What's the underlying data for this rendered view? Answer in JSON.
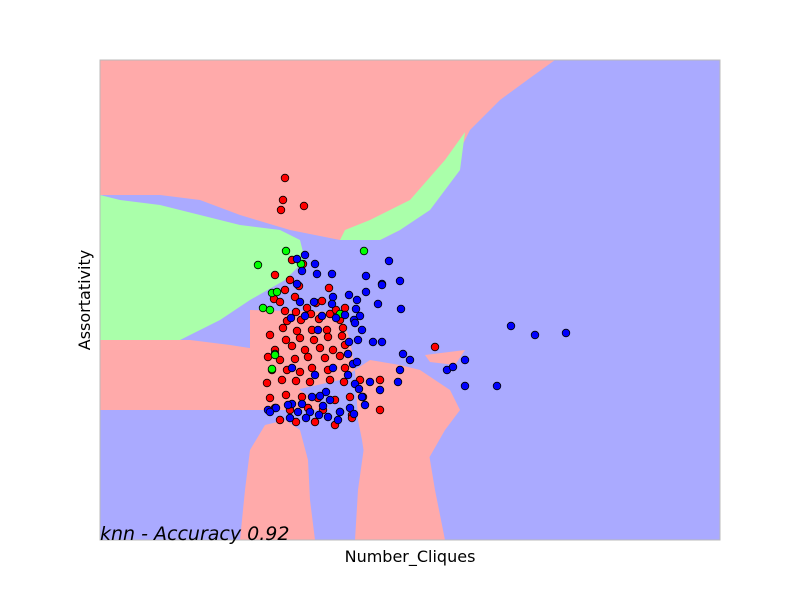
{
  "chart_data": {
    "type": "scatter",
    "title": "",
    "xlabel": "Number_Cliques",
    "ylabel": "Assortativity",
    "annotation": "knn - Accuracy 0.92",
    "xlim": [
      0,
      620
    ],
    "ylim": [
      0,
      480
    ],
    "show_ticks": false,
    "grid": false,
    "legend": "none",
    "colors": {
      "region_red": "#ffaaaa",
      "region_green": "#aaffaa",
      "region_blue": "#aaaaff",
      "point_red": "#ff0000",
      "point_green": "#00ff00",
      "point_blue": "#0000ff",
      "point_edge": "#000000",
      "frame": "#bbbbbb"
    },
    "regions": [
      {
        "class": "red",
        "polygon": [
          [
            0,
            480
          ],
          [
            455,
            480
          ],
          [
            430,
            462
          ],
          [
            400,
            440
          ],
          [
            370,
            410
          ],
          [
            350,
            370
          ],
          [
            300,
            310
          ],
          [
            280,
            300
          ],
          [
            240,
            300
          ],
          [
            190,
            310
          ],
          [
            140,
            325
          ],
          [
            100,
            340
          ],
          [
            60,
            345
          ],
          [
            20,
            345
          ],
          [
            0,
            345
          ]
        ]
      },
      {
        "class": "green",
        "polygon": [
          [
            0,
            345
          ],
          [
            20,
            340
          ],
          [
            60,
            335
          ],
          [
            100,
            325
          ],
          [
            140,
            315
          ],
          [
            180,
            310
          ],
          [
            200,
            300
          ],
          [
            205,
            280
          ],
          [
            185,
            260
          ],
          [
            150,
            240
          ],
          [
            120,
            220
          ],
          [
            80,
            200
          ],
          [
            40,
            190
          ],
          [
            0,
            185
          ]
        ]
      },
      {
        "class": "green",
        "polygon": [
          [
            240,
            300
          ],
          [
            280,
            300
          ],
          [
            300,
            310
          ],
          [
            330,
            330
          ],
          [
            360,
            370
          ],
          [
            365,
            408
          ],
          [
            345,
            380
          ],
          [
            310,
            340
          ],
          [
            270,
            320
          ],
          [
            245,
            310
          ]
        ]
      },
      {
        "class": "red",
        "polygon": [
          [
            0,
            200
          ],
          [
            90,
            200
          ],
          [
            130,
            195
          ],
          [
            175,
            188
          ],
          [
            200,
            150
          ],
          [
            230,
            130
          ],
          [
            0,
            130
          ]
        ]
      },
      {
        "class": "red",
        "polygon": [
          [
            150,
            230
          ],
          [
            240,
            228
          ],
          [
            250,
            200
          ],
          [
            255,
            170
          ],
          [
            258,
            120
          ],
          [
            262,
            100
          ],
          [
            265,
            80
          ],
          [
            275,
            60
          ],
          [
            310,
            55
          ],
          [
            325,
            75
          ],
          [
            345,
            110
          ],
          [
            360,
            130
          ],
          [
            350,
            150
          ],
          [
            320,
            170
          ],
          [
            300,
            175
          ],
          [
            270,
            180
          ],
          [
            240,
            160
          ],
          [
            150,
            140
          ]
        ]
      },
      {
        "class": "blue",
        "polygon": [
          [
            0,
            0
          ],
          [
            130,
            0
          ],
          [
            150,
            30
          ],
          [
            155,
            70
          ],
          [
            160,
            100
          ],
          [
            150,
            120
          ],
          [
            130,
            125
          ],
          [
            60,
            130
          ],
          [
            0,
            128
          ]
        ]
      },
      {
        "class": "red",
        "polygon": [
          [
            140,
            0
          ],
          [
            215,
            0
          ],
          [
            210,
            40
          ],
          [
            208,
            80
          ],
          [
            200,
            110
          ],
          [
            185,
            120
          ],
          [
            165,
            115
          ],
          [
            150,
            90
          ],
          [
            145,
            50
          ]
        ]
      },
      {
        "class": "red",
        "polygon": [
          [
            255,
            0
          ],
          [
            345,
            0
          ],
          [
            335,
            50
          ],
          [
            325,
            110
          ],
          [
            305,
            120
          ],
          [
            280,
            120
          ],
          [
            265,
            100
          ],
          [
            258,
            50
          ]
        ]
      },
      {
        "class": "red",
        "polygon": [
          [
            325,
            185
          ],
          [
            365,
            190
          ],
          [
            355,
            175
          ],
          [
            330,
            178
          ]
        ]
      }
    ],
    "series": [
      {
        "class": "red",
        "points": [
          [
            185,
            362
          ],
          [
            183,
            340
          ],
          [
            204,
            334
          ],
          [
            181,
            330
          ],
          [
            192,
            280
          ],
          [
            203,
            276
          ],
          [
            175,
            265
          ],
          [
            190,
            260
          ],
          [
            185,
            250
          ],
          [
            199,
            254
          ],
          [
            174,
            241
          ],
          [
            180,
            238
          ],
          [
            195,
            243
          ],
          [
            207,
            232
          ],
          [
            229,
            252
          ],
          [
            216,
            237
          ],
          [
            222,
            239
          ],
          [
            185,
            229
          ],
          [
            196,
            228
          ],
          [
            211,
            226
          ],
          [
            230,
            226
          ],
          [
            236,
            230
          ],
          [
            245,
            232
          ],
          [
            187,
            219
          ],
          [
            201,
            220
          ],
          [
            219,
            221
          ],
          [
            240,
            220
          ],
          [
            183,
            212
          ],
          [
            197,
            209
          ],
          [
            212,
            210
          ],
          [
            227,
            210
          ],
          [
            243,
            212
          ],
          [
            170,
            205
          ],
          [
            186,
            200
          ],
          [
            200,
            202
          ],
          [
            214,
            200
          ],
          [
            228,
            203
          ],
          [
            242,
            204
          ],
          [
            175,
            190
          ],
          [
            192,
            194
          ],
          [
            205,
            190
          ],
          [
            220,
            192
          ],
          [
            233,
            190
          ],
          [
            245,
            195
          ],
          [
            168,
            183
          ],
          [
            180,
            180
          ],
          [
            195,
            181
          ],
          [
            208,
            183
          ],
          [
            225,
            182
          ],
          [
            240,
            184
          ],
          [
            172,
            170
          ],
          [
            187,
            170
          ],
          [
            200,
            168
          ],
          [
            212,
            172
          ],
          [
            228,
            170
          ],
          [
            245,
            172
          ],
          [
            167,
            157
          ],
          [
            182,
            160
          ],
          [
            196,
            159
          ],
          [
            210,
            158
          ],
          [
            230,
            160
          ],
          [
            244,
            158
          ],
          [
            170,
            142
          ],
          [
            186,
            145
          ],
          [
            202,
            143
          ],
          [
            218,
            142
          ],
          [
            235,
            140
          ],
          [
            250,
            143
          ],
          [
            263,
            143
          ],
          [
            280,
            160
          ],
          [
            260,
            160
          ],
          [
            175,
            132
          ],
          [
            190,
            130
          ],
          [
            208,
            132
          ],
          [
            223,
            130
          ],
          [
            240,
            128
          ],
          [
            252,
            125
          ],
          [
            180,
            120
          ],
          [
            196,
            118
          ],
          [
            215,
            118
          ],
          [
            235,
            115
          ],
          [
            252,
            122
          ],
          [
            335,
            193
          ],
          [
            280,
            130
          ]
        ]
      },
      {
        "class": "green",
        "points": [
          [
            158,
            275
          ],
          [
            186,
            289
          ],
          [
            264,
            289
          ],
          [
            201,
            276
          ],
          [
            172,
            247
          ],
          [
            177,
            248
          ],
          [
            163,
            232
          ],
          [
            170,
            230
          ],
          [
            240,
            226
          ],
          [
            175,
            186
          ],
          [
            172,
            171
          ],
          [
            175,
            185
          ]
        ]
      },
      {
        "class": "blue",
        "points": [
          [
            205,
            285
          ],
          [
            197,
            281
          ],
          [
            215,
            276
          ],
          [
            289,
            279
          ],
          [
            202,
            269
          ],
          [
            217,
            266
          ],
          [
            232,
            266
          ],
          [
            266,
            264
          ],
          [
            300,
            259
          ],
          [
            282,
            256
          ],
          [
            197,
            256
          ],
          [
            282,
            255
          ],
          [
            266,
            248
          ],
          [
            257,
            240
          ],
          [
            249,
            245
          ],
          [
            278,
            236
          ],
          [
            233,
            243
          ],
          [
            256,
            231
          ],
          [
            245,
            225
          ],
          [
            260,
            224
          ],
          [
            200,
            238
          ],
          [
            214,
            238
          ],
          [
            232,
            236
          ],
          [
            301,
            231
          ],
          [
            191,
            222
          ],
          [
            205,
            224
          ],
          [
            222,
            224
          ],
          [
            236,
            222
          ],
          [
            254,
            220
          ],
          [
            262,
            210
          ],
          [
            218,
            210
          ],
          [
            255,
            217
          ],
          [
            249,
            198
          ],
          [
            258,
            200
          ],
          [
            273,
            198
          ],
          [
            282,
            198
          ],
          [
            411,
            214
          ],
          [
            435,
            205
          ],
          [
            466,
            207
          ],
          [
            303,
            186
          ],
          [
            310,
            180
          ],
          [
            248,
            186
          ],
          [
            300,
            170
          ],
          [
            347,
            170
          ],
          [
            353,
            173
          ],
          [
            365,
            180
          ],
          [
            253,
            176
          ],
          [
            257,
            178
          ],
          [
            233,
            172
          ],
          [
            192,
            172
          ],
          [
            215,
            165
          ],
          [
            248,
            165
          ],
          [
            298,
            158
          ],
          [
            270,
            158
          ],
          [
            255,
            156
          ],
          [
            365,
            154
          ],
          [
            397,
            154
          ],
          [
            259,
            151
          ],
          [
            226,
            148
          ],
          [
            220,
            144
          ],
          [
            262,
            143
          ],
          [
            230,
            140
          ],
          [
            212,
            143
          ],
          [
            192,
            136
          ],
          [
            202,
            136
          ],
          [
            168,
            130
          ],
          [
            176,
            132
          ],
          [
            188,
            135
          ],
          [
            198,
            128
          ],
          [
            210,
            128
          ],
          [
            223,
            134
          ],
          [
            240,
            128
          ],
          [
            250,
            132
          ],
          [
            265,
            135
          ],
          [
            219,
            125
          ],
          [
            170,
            128
          ],
          [
            190,
            122
          ],
          [
            206,
            122
          ],
          [
            228,
            123
          ],
          [
            238,
            120
          ],
          [
            254,
            126
          ],
          [
            280,
            150
          ]
        ]
      }
    ]
  }
}
